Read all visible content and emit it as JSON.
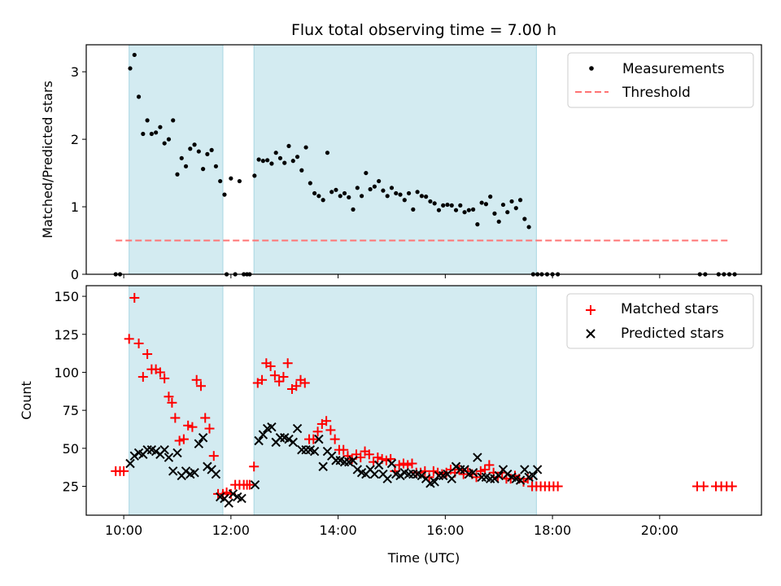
{
  "chart_data": [
    {
      "type": "scatter",
      "title": "Flux total observing time = 7.00 h",
      "xlabel": "",
      "ylabel": "Matched/Predicted stars",
      "x_unit": "hours UTC (decimal)",
      "xlim": [
        9.3,
        21.9
      ],
      "ylim": [
        0,
        3.4
      ],
      "yticks": [
        0,
        1,
        2,
        3
      ],
      "grid": false,
      "legend_position": "top-right",
      "shaded_intervals": [
        [
          10.1,
          11.85
        ],
        [
          12.43,
          17.7
        ]
      ],
      "shade_color": "#d3ebf1",
      "series": [
        {
          "name": "Measurements",
          "kind": "scatter",
          "marker": "dot",
          "color": "#000000",
          "x": [
            9.85,
            9.93,
            10.12,
            10.2,
            10.28,
            10.36,
            10.44,
            10.52,
            10.6,
            10.68,
            10.76,
            10.84,
            10.92,
            11.0,
            11.08,
            11.16,
            11.24,
            11.32,
            11.4,
            11.48,
            11.56,
            11.64,
            11.72,
            11.8,
            11.88,
            11.92,
            12.0,
            12.08,
            12.16,
            12.24,
            12.3,
            12.35,
            12.44,
            12.52,
            12.6,
            12.68,
            12.76,
            12.84,
            12.92,
            13.0,
            13.08,
            13.16,
            13.24,
            13.32,
            13.4,
            13.48,
            13.56,
            13.64,
            13.72,
            13.8,
            13.88,
            13.96,
            14.04,
            14.12,
            14.2,
            14.28,
            14.36,
            14.44,
            14.52,
            14.6,
            14.68,
            14.76,
            14.84,
            14.92,
            15.0,
            15.08,
            15.16,
            15.24,
            15.32,
            15.4,
            15.48,
            15.56,
            15.64,
            15.72,
            15.8,
            15.88,
            15.96,
            16.04,
            16.12,
            16.2,
            16.28,
            16.36,
            16.44,
            16.52,
            16.6,
            16.68,
            16.76,
            16.84,
            16.92,
            17.0,
            17.08,
            17.16,
            17.24,
            17.32,
            17.4,
            17.48,
            17.56,
            17.64,
            17.72,
            17.8,
            17.9,
            18.0,
            18.1,
            20.75,
            20.85,
            21.1,
            21.2,
            21.3,
            21.4
          ],
          "y": [
            0,
            0,
            3.05,
            3.25,
            2.63,
            2.08,
            2.28,
            2.08,
            2.1,
            2.18,
            1.94,
            2.0,
            2.28,
            1.48,
            1.72,
            1.6,
            1.86,
            1.92,
            1.82,
            1.56,
            1.78,
            1.84,
            1.6,
            1.38,
            1.18,
            0,
            1.42,
            0,
            1.38,
            0,
            0,
            0,
            1.46,
            1.7,
            1.68,
            1.69,
            1.64,
            1.8,
            1.72,
            1.65,
            1.9,
            1.68,
            1.74,
            1.54,
            1.88,
            1.35,
            1.2,
            1.16,
            1.1,
            1.8,
            1.22,
            1.25,
            1.16,
            1.2,
            1.14,
            0.96,
            1.28,
            1.16,
            1.5,
            1.26,
            1.3,
            1.38,
            1.24,
            1.16,
            1.28,
            1.2,
            1.18,
            1.1,
            1.2,
            0.96,
            1.22,
            1.16,
            1.15,
            1.08,
            1.05,
            0.95,
            1.02,
            1.03,
            1.02,
            0.95,
            1.02,
            0.92,
            0.95,
            0.96,
            0.74,
            1.06,
            1.04,
            1.15,
            0.9,
            0.78,
            1.03,
            0.92,
            1.08,
            0.98,
            1.1,
            0.82,
            0.7,
            0,
            0,
            0,
            0,
            0,
            0,
            0,
            0,
            0,
            0,
            0,
            0
          ],
          "exclude_x": []
        },
        {
          "name": "Threshold",
          "kind": "line",
          "style": "dashed",
          "color": "#ff7373",
          "x": [
            9.85,
            21.3
          ],
          "y": [
            0.5,
            0.5
          ]
        }
      ]
    },
    {
      "type": "scatter",
      "title": "",
      "xlabel": "Time (UTC)",
      "ylabel": "Count",
      "x_unit": "hours UTC (decimal)",
      "xlim": [
        9.3,
        21.9
      ],
      "ylim": [
        6,
        157
      ],
      "yticks": [
        25,
        50,
        75,
        100,
        125,
        150
      ],
      "xticks": [
        10,
        12,
        14,
        16,
        18,
        20
      ],
      "xtick_labels": [
        "10:00",
        "12:00",
        "14:00",
        "16:00",
        "18:00",
        "20:00"
      ],
      "grid": false,
      "legend_position": "top-right",
      "shaded_intervals": [
        [
          10.1,
          11.85
        ],
        [
          12.43,
          17.7
        ]
      ],
      "shade_color": "#d3ebf1",
      "series": [
        {
          "name": "Matched stars",
          "kind": "scatter",
          "marker": "plus",
          "color": "#ff0000",
          "x": [
            9.85,
            9.93,
            10.0,
            10.1,
            10.2,
            10.28,
            10.36,
            10.44,
            10.52,
            10.6,
            10.68,
            10.76,
            10.84,
            10.9,
            10.96,
            11.04,
            11.12,
            11.2,
            11.28,
            11.36,
            11.44,
            11.52,
            11.6,
            11.68,
            11.76,
            11.85,
            11.92,
            12.0,
            12.08,
            12.16,
            12.24,
            12.3,
            12.35,
            12.43,
            12.5,
            12.58,
            12.66,
            12.74,
            12.82,
            12.9,
            12.98,
            13.06,
            13.14,
            13.22,
            13.3,
            13.38,
            13.46,
            13.54,
            13.62,
            13.7,
            13.78,
            13.86,
            13.94,
            14.02,
            14.1,
            14.18,
            14.26,
            14.34,
            14.42,
            14.5,
            14.58,
            14.66,
            14.74,
            14.82,
            14.9,
            14.98,
            15.06,
            15.14,
            15.22,
            15.3,
            15.38,
            15.46,
            15.54,
            15.62,
            15.7,
            15.78,
            15.86,
            15.94,
            16.02,
            16.1,
            16.18,
            16.26,
            16.34,
            16.42,
            16.5,
            16.58,
            16.66,
            16.74,
            16.82,
            16.9,
            16.98,
            17.06,
            17.14,
            17.22,
            17.3,
            17.38,
            17.46,
            17.54,
            17.62,
            17.7,
            17.78,
            17.86,
            17.94,
            18.02,
            18.1,
            20.7,
            20.82,
            21.05,
            21.15,
            21.25,
            21.35
          ],
          "y": [
            35,
            35,
            35,
            122,
            149,
            119,
            97,
            112,
            102,
            102,
            100,
            96,
            84,
            80,
            70,
            55,
            56,
            65,
            64,
            95,
            91,
            70,
            63,
            45,
            20,
            20,
            21,
            20,
            26,
            26,
            26,
            26,
            26,
            38,
            93,
            95,
            106,
            104,
            98,
            94,
            97,
            106,
            89,
            91,
            95,
            93,
            56,
            56,
            61,
            66,
            68,
            62,
            56,
            49,
            49,
            45,
            43,
            46,
            44,
            48,
            46,
            41,
            44,
            43,
            42,
            43,
            35,
            39,
            40,
            39,
            40,
            34,
            34,
            35,
            31,
            35,
            34,
            33,
            34,
            36,
            34,
            36,
            33,
            35,
            33,
            31,
            35,
            36,
            39,
            34,
            31,
            34,
            30,
            30,
            32,
            30,
            28,
            30,
            25,
            25,
            25,
            25,
            25,
            25,
            25,
            25,
            25,
            25,
            25,
            25,
            25
          ],
          "exclude_x": []
        },
        {
          "name": "Predicted stars",
          "kind": "scatter",
          "marker": "x",
          "color": "#000000",
          "x": [
            10.12,
            10.2,
            10.28,
            10.36,
            10.44,
            10.52,
            10.6,
            10.68,
            10.76,
            10.84,
            10.92,
            11.0,
            11.08,
            11.16,
            11.24,
            11.32,
            11.4,
            11.48,
            11.56,
            11.64,
            11.72,
            11.8,
            11.88,
            11.96,
            12.04,
            12.12,
            12.2,
            12.45,
            12.52,
            12.6,
            12.68,
            12.76,
            12.84,
            12.92,
            13.0,
            13.08,
            13.16,
            13.24,
            13.32,
            13.4,
            13.48,
            13.56,
            13.64,
            13.72,
            13.8,
            13.88,
            13.96,
            14.04,
            14.12,
            14.2,
            14.28,
            14.36,
            14.44,
            14.52,
            14.6,
            14.68,
            14.76,
            14.84,
            14.92,
            15.0,
            15.08,
            15.16,
            15.24,
            15.32,
            15.4,
            15.48,
            15.56,
            15.64,
            15.72,
            15.8,
            15.88,
            15.96,
            16.04,
            16.12,
            16.2,
            16.28,
            16.36,
            16.44,
            16.52,
            16.6,
            16.68,
            16.76,
            16.84,
            16.92,
            17.0,
            17.08,
            17.16,
            17.24,
            17.32,
            17.4,
            17.48,
            17.56,
            17.64,
            17.72
          ],
          "y": [
            40,
            45,
            47,
            46,
            49,
            49,
            48,
            46,
            49,
            44,
            35,
            47,
            32,
            35,
            33,
            34,
            53,
            57,
            38,
            36,
            33,
            18,
            17,
            14,
            20,
            18,
            17,
            26,
            55,
            59,
            63,
            64,
            54,
            57,
            57,
            56,
            54,
            63,
            49,
            49,
            49,
            48,
            56,
            38,
            48,
            45,
            42,
            42,
            41,
            41,
            42,
            36,
            34,
            33,
            36,
            33,
            39,
            33,
            30,
            40,
            33,
            32,
            34,
            33,
            33,
            33,
            32,
            30,
            27,
            28,
            32,
            32,
            33,
            30,
            38,
            36,
            36,
            33,
            34,
            44,
            31,
            31,
            30,
            30,
            32,
            36,
            33,
            31,
            30,
            29,
            36,
            31,
            32,
            36
          ],
          "exclude_x": []
        }
      ]
    }
  ]
}
